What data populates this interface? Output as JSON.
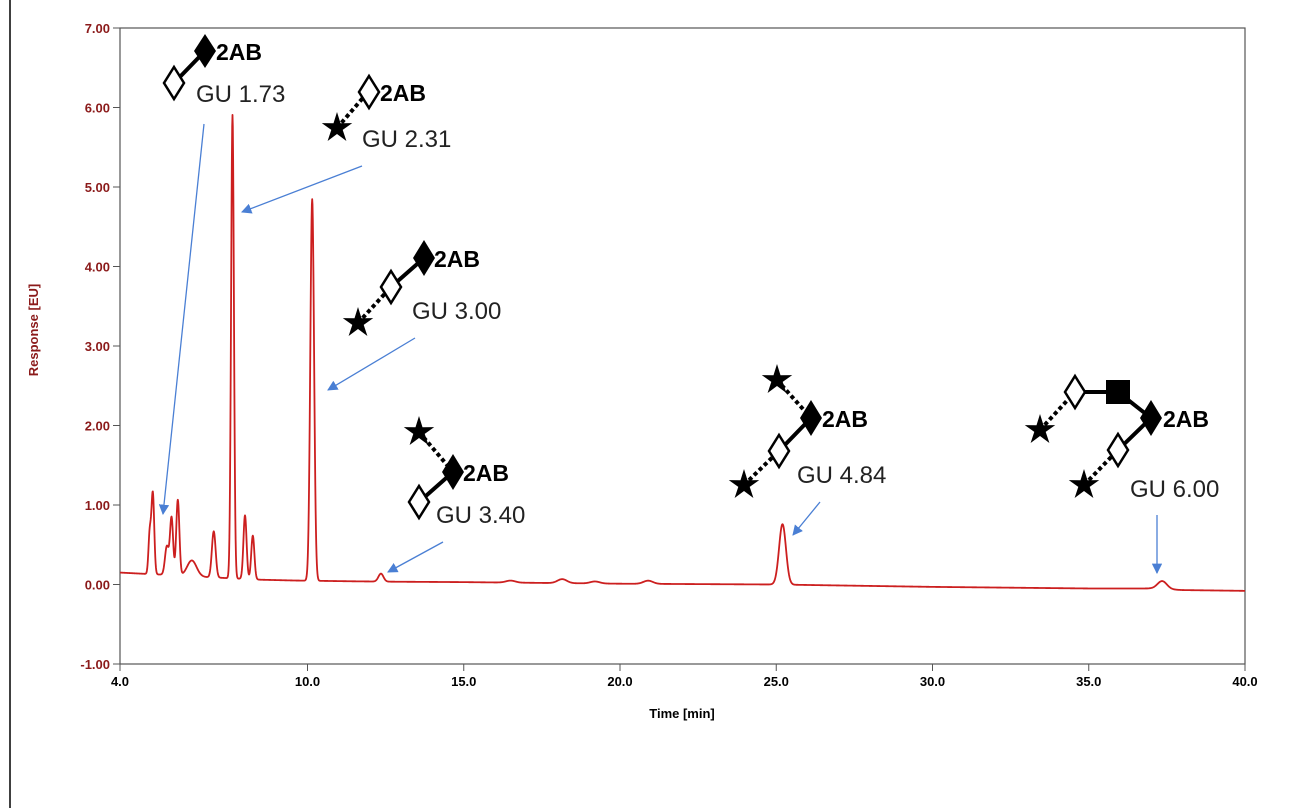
{
  "chart_data": {
    "type": "line",
    "xlabel": "Time [min]",
    "ylabel": "Response [EU]",
    "xlim": [
      4.0,
      40.0
    ],
    "ylim": [
      -1.0,
      7.0
    ],
    "x_ticks": [
      "4.0",
      "10.0",
      "15.0",
      "20.0",
      "25.0",
      "30.0",
      "35.0",
      "40.0"
    ],
    "x_tick_values": [
      4,
      10,
      15,
      20,
      25,
      30,
      35,
      40
    ],
    "y_ticks": [
      "-1.00",
      "0.00",
      "1.00",
      "2.00",
      "3.00",
      "4.00",
      "5.00",
      "6.00",
      "7.00"
    ],
    "y_tick_values": [
      -1,
      0,
      1,
      2,
      3,
      4,
      5,
      6,
      7
    ],
    "grid": false,
    "line_color": "#cc1f1f",
    "baseline": {
      "x": [
        4.0,
        5.0,
        5.6,
        6.4,
        8.5,
        9.6,
        11.5,
        12.8,
        15,
        20,
        25,
        30,
        35,
        37.0,
        38.0,
        40.0
      ],
      "y": [
        0.15,
        0.13,
        0.12,
        0.1,
        0.06,
        0.05,
        0.04,
        0.035,
        0.03,
        0.01,
        0.0,
        -0.03,
        -0.05,
        -0.05,
        -0.07,
        -0.08
      ]
    },
    "peaks": [
      {
        "x": 4.95,
        "y": 0.5,
        "w": 0.04
      },
      {
        "x": 5.05,
        "y": 1.02,
        "w": 0.045
      },
      {
        "x": 5.5,
        "y": 0.36,
        "w": 0.06
      },
      {
        "x": 5.65,
        "y": 0.72,
        "w": 0.05
      },
      {
        "x": 5.85,
        "y": 0.95,
        "w": 0.05
      },
      {
        "x": 6.3,
        "y": 0.2,
        "w": 0.15
      },
      {
        "x": 7.0,
        "y": 0.58,
        "w": 0.06
      },
      {
        "x": 7.6,
        "y": 5.83,
        "w": 0.045
      },
      {
        "x": 8.0,
        "y": 0.8,
        "w": 0.05
      },
      {
        "x": 8.25,
        "y": 0.55,
        "w": 0.05
      },
      {
        "x": 10.15,
        "y": 4.8,
        "w": 0.06
      },
      {
        "x": 12.35,
        "y": 0.1,
        "w": 0.08
      },
      {
        "x": 16.5,
        "y": 0.025,
        "w": 0.15
      },
      {
        "x": 18.15,
        "y": 0.05,
        "w": 0.15
      },
      {
        "x": 19.2,
        "y": 0.025,
        "w": 0.15
      },
      {
        "x": 20.9,
        "y": 0.04,
        "w": 0.15
      },
      {
        "x": 25.2,
        "y": 0.76,
        "w": 0.11
      },
      {
        "x": 37.35,
        "y": 0.1,
        "w": 0.15
      }
    ],
    "annotations": [
      {
        "label": "GU 1.73",
        "peak_x": 5.1
      },
      {
        "label": "GU 2.31",
        "peak_x": 7.6
      },
      {
        "label": "GU 3.00",
        "peak_x": 10.15
      },
      {
        "label": "GU 3.40",
        "peak_x": 12.35
      },
      {
        "label": "GU 4.84",
        "peak_x": 25.2
      },
      {
        "label": "GU 6.00",
        "peak_x": 37.35
      }
    ],
    "glycan_tag": "2AB",
    "arrow_color": "#4a7fd4"
  }
}
